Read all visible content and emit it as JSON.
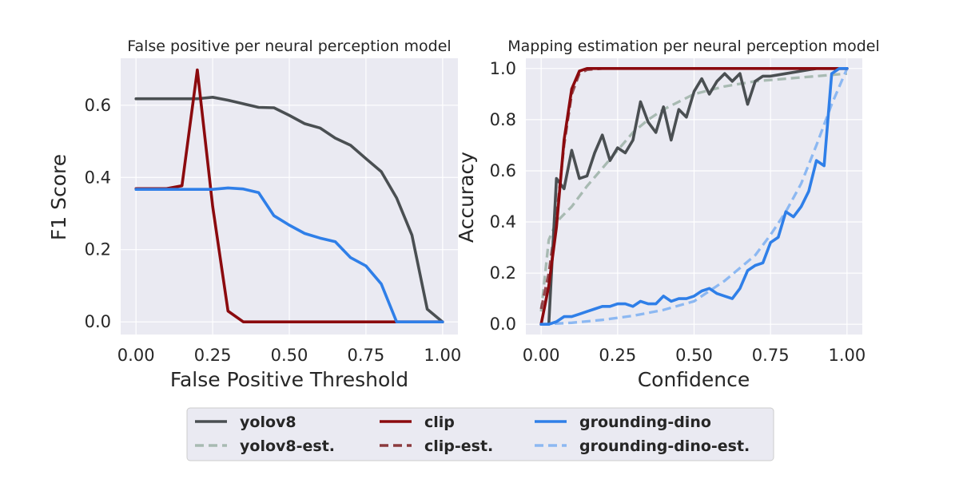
{
  "colors": {
    "yolov8": "#4a4f52",
    "yolov8_est": "#a8bab2",
    "clip": "#8b0a0e",
    "clip_est": "#8b3a3e",
    "grounding_dino": "#2f7fe8",
    "grounding_dino_est": "#8cb8f2",
    "plot_bg": "#eaeaf2",
    "grid": "#ffffff"
  },
  "legend": {
    "items": [
      {
        "key": "yolov8",
        "label": "yolov8",
        "dashed": false
      },
      {
        "key": "yolov8_est",
        "label": "yolov8-est.",
        "dashed": true
      },
      {
        "key": "clip",
        "label": "clip",
        "dashed": false
      },
      {
        "key": "clip_est",
        "label": "clip-est.",
        "dashed": true
      },
      {
        "key": "grounding_dino",
        "label": "grounding-dino",
        "dashed": false
      },
      {
        "key": "grounding_dino_est",
        "label": "grounding-dino-est.",
        "dashed": true
      }
    ],
    "placement": "bottom-center"
  },
  "chart_data": [
    {
      "type": "line",
      "title": "False positive per neural perception model",
      "xlabel": "False Positive Threshold",
      "ylabel": "F1 Score",
      "xlim": [
        -0.05,
        1.05
      ],
      "ylim": [
        -0.035,
        0.73
      ],
      "xticks": [
        0,
        0.25,
        0.5,
        0.75,
        1.0
      ],
      "xtick_labels": [
        "0.00",
        "0.25",
        "0.50",
        "0.75",
        "1.00"
      ],
      "yticks": [
        0,
        0.2,
        0.4,
        0.6
      ],
      "ytick_labels": [
        "0.0",
        "0.2",
        "0.4",
        "0.6"
      ],
      "grid": true,
      "series": [
        {
          "name": "yolov8",
          "key": "yolov8",
          "dashed": false,
          "x": [
            0,
            0.05,
            0.1,
            0.15,
            0.2,
            0.25,
            0.3,
            0.35,
            0.4,
            0.45,
            0.5,
            0.55,
            0.6,
            0.65,
            0.7,
            0.75,
            0.8,
            0.85,
            0.9,
            0.95,
            1.0
          ],
          "y": [
            0.618,
            0.618,
            0.618,
            0.618,
            0.618,
            0.622,
            0.614,
            0.604,
            0.594,
            0.593,
            0.572,
            0.549,
            0.537,
            0.509,
            0.489,
            0.452,
            0.416,
            0.343,
            0.24,
            0.035,
            0.0
          ]
        },
        {
          "name": "clip",
          "key": "clip",
          "dashed": false,
          "x": [
            0,
            0.05,
            0.1,
            0.15,
            0.2,
            0.25,
            0.3,
            0.35,
            0.4,
            0.45,
            0.5,
            0.55,
            0.6,
            0.65,
            0.7,
            0.75,
            0.8,
            0.85,
            0.9,
            0.95,
            1.0
          ],
          "y": [
            0.369,
            0.369,
            0.369,
            0.377,
            0.698,
            0.32,
            0.03,
            0.0,
            0.0,
            0.0,
            0.0,
            0.0,
            0.0,
            0.0,
            0.0,
            0.0,
            0.0,
            0.0,
            0.0,
            0.0,
            0.0
          ]
        },
        {
          "name": "grounding-dino",
          "key": "grounding_dino",
          "dashed": false,
          "x": [
            0,
            0.05,
            0.1,
            0.15,
            0.2,
            0.25,
            0.3,
            0.35,
            0.4,
            0.45,
            0.5,
            0.55,
            0.6,
            0.65,
            0.7,
            0.75,
            0.8,
            0.85,
            0.9,
            0.95,
            1.0
          ],
          "y": [
            0.367,
            0.367,
            0.367,
            0.367,
            0.367,
            0.367,
            0.371,
            0.368,
            0.358,
            0.294,
            0.268,
            0.245,
            0.232,
            0.222,
            0.178,
            0.155,
            0.105,
            0.0,
            0.0,
            0.0,
            0.0
          ]
        }
      ]
    },
    {
      "type": "line",
      "title": "Mapping estimation per neural perception model",
      "xlabel": "Confidence",
      "ylabel": "Accuracy",
      "xlim": [
        -0.05,
        1.05
      ],
      "ylim": [
        -0.04,
        1.04
      ],
      "xticks": [
        0,
        0.25,
        0.5,
        0.75,
        1.0
      ],
      "xtick_labels": [
        "0.00",
        "0.25",
        "0.50",
        "0.75",
        "1.00"
      ],
      "yticks": [
        0,
        0.2,
        0.4,
        0.6,
        0.8,
        1.0
      ],
      "ytick_labels": [
        "0.0",
        "0.2",
        "0.4",
        "0.6",
        "0.8",
        "1.0"
      ],
      "grid": true,
      "series": [
        {
          "name": "yolov8-est.",
          "key": "yolov8_est",
          "dashed": true,
          "x": [
            0,
            0.025,
            0.05,
            0.075,
            0.1,
            0.15,
            0.2,
            0.25,
            0.3,
            0.35,
            0.4,
            0.5,
            0.6,
            0.7,
            0.8,
            0.9,
            1.0
          ],
          "y": [
            0.05,
            0.33,
            0.4,
            0.43,
            0.46,
            0.54,
            0.61,
            0.68,
            0.75,
            0.8,
            0.84,
            0.9,
            0.93,
            0.95,
            0.96,
            0.97,
            0.98
          ]
        },
        {
          "name": "clip-est.",
          "key": "clip_est",
          "dashed": true,
          "x": [
            0,
            0.025,
            0.05,
            0.075,
            0.1,
            0.125,
            0.15,
            0.2,
            0.3,
            0.5,
            0.75,
            1.0
          ],
          "y": [
            0.06,
            0.2,
            0.42,
            0.7,
            0.9,
            0.98,
            0.995,
            1.0,
            1.0,
            1.0,
            1.0,
            1.0
          ]
        },
        {
          "name": "grounding-dino-est.",
          "key": "grounding_dino_est",
          "dashed": true,
          "x": [
            0,
            0.1,
            0.2,
            0.3,
            0.4,
            0.5,
            0.6,
            0.7,
            0.75,
            0.8,
            0.85,
            0.9,
            0.95,
            1.0
          ],
          "y": [
            0.0,
            0.006,
            0.017,
            0.033,
            0.056,
            0.09,
            0.17,
            0.27,
            0.35,
            0.44,
            0.55,
            0.7,
            0.86,
            1.0
          ]
        },
        {
          "name": "yolov8",
          "key": "yolov8",
          "dashed": false,
          "x": [
            0.025,
            0.05,
            0.075,
            0.1,
            0.125,
            0.15,
            0.175,
            0.2,
            0.225,
            0.25,
            0.275,
            0.3,
            0.325,
            0.35,
            0.375,
            0.4,
            0.425,
            0.45,
            0.475,
            0.5,
            0.525,
            0.55,
            0.575,
            0.6,
            0.625,
            0.65,
            0.675,
            0.7,
            0.725,
            0.75,
            0.8,
            0.85,
            0.9,
            0.95,
            1.0
          ],
          "y": [
            0.0,
            0.57,
            0.53,
            0.68,
            0.57,
            0.58,
            0.67,
            0.74,
            0.64,
            0.69,
            0.67,
            0.72,
            0.87,
            0.79,
            0.75,
            0.85,
            0.72,
            0.84,
            0.81,
            0.91,
            0.96,
            0.9,
            0.95,
            0.98,
            0.95,
            0.98,
            0.86,
            0.95,
            0.97,
            0.97,
            0.98,
            0.99,
            1.0,
            1.0,
            1.0
          ]
        },
        {
          "name": "clip",
          "key": "clip",
          "dashed": false,
          "x": [
            0,
            0.025,
            0.05,
            0.075,
            0.1,
            0.125,
            0.15,
            0.2,
            0.3,
            0.5,
            0.75,
            1.0
          ],
          "y": [
            0.0,
            0.15,
            0.38,
            0.72,
            0.92,
            0.99,
            1.0,
            1.0,
            1.0,
            1.0,
            1.0,
            1.0
          ]
        },
        {
          "name": "grounding-dino",
          "key": "grounding_dino",
          "dashed": false,
          "x": [
            0,
            0.025,
            0.05,
            0.075,
            0.1,
            0.125,
            0.15,
            0.175,
            0.2,
            0.225,
            0.25,
            0.275,
            0.3,
            0.325,
            0.35,
            0.375,
            0.4,
            0.425,
            0.45,
            0.475,
            0.5,
            0.525,
            0.55,
            0.575,
            0.6,
            0.625,
            0.65,
            0.675,
            0.7,
            0.725,
            0.75,
            0.775,
            0.8,
            0.825,
            0.85,
            0.875,
            0.9,
            0.925,
            0.95,
            0.975,
            1.0
          ],
          "y": [
            0.0,
            0.0,
            0.01,
            0.03,
            0.03,
            0.04,
            0.05,
            0.06,
            0.07,
            0.07,
            0.08,
            0.08,
            0.07,
            0.09,
            0.08,
            0.08,
            0.11,
            0.09,
            0.1,
            0.1,
            0.11,
            0.13,
            0.14,
            0.12,
            0.11,
            0.1,
            0.14,
            0.21,
            0.23,
            0.24,
            0.32,
            0.34,
            0.44,
            0.42,
            0.46,
            0.52,
            0.64,
            0.62,
            0.98,
            1.0,
            1.0
          ]
        }
      ]
    }
  ]
}
